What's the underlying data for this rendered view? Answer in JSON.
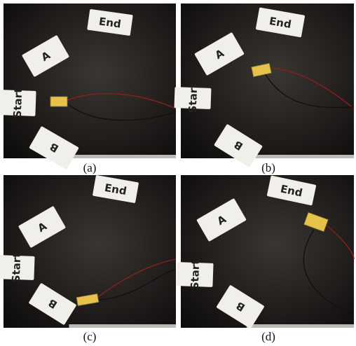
{
  "card_labels": [
    "End",
    "A",
    "Start",
    "B"
  ],
  "panels": [
    {
      "caption": "(a)"
    },
    {
      "caption": "(b)"
    },
    {
      "caption": "(c)"
    },
    {
      "caption": "(d)"
    }
  ]
}
